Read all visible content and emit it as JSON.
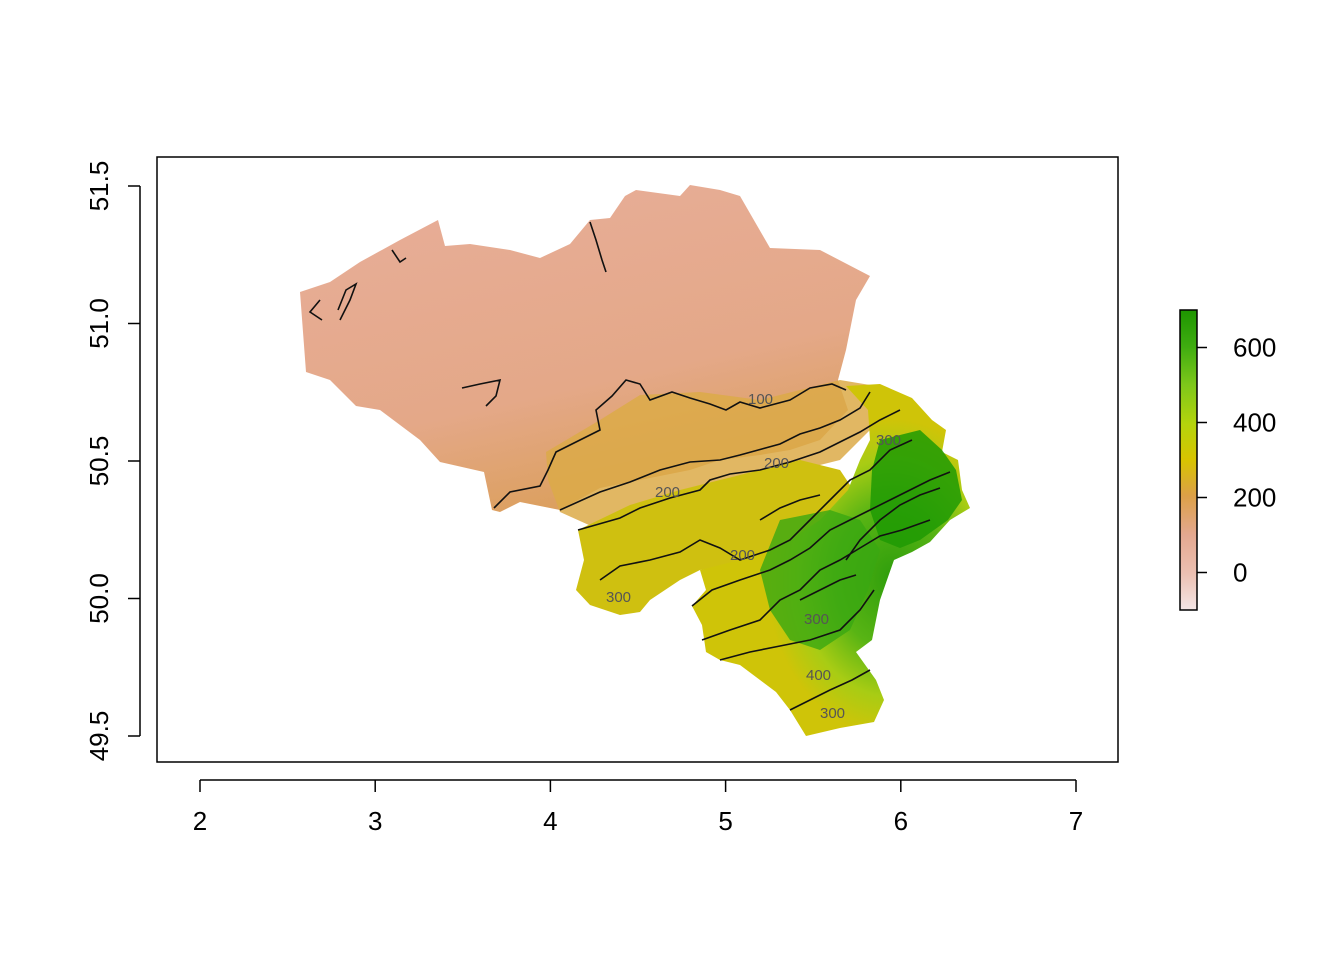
{
  "map": {
    "type": "raster-elevation",
    "xlim": [
      1.75,
      7.25
    ],
    "ylim": [
      49.4,
      51.6
    ],
    "x_ticks": [
      2,
      3,
      4,
      5,
      6,
      7
    ],
    "x_tick_labels": [
      "2",
      "3",
      "4",
      "5",
      "6",
      "7"
    ],
    "y_ticks": [
      49.5,
      50.0,
      50.5,
      51.0,
      51.5
    ],
    "y_tick_labels": [
      "49.5",
      "50.0",
      "50.5",
      "51.0",
      "51.5"
    ],
    "colorbar": {
      "range": [
        -100,
        700
      ],
      "ticks": [
        0,
        200,
        400,
        600
      ],
      "tick_labels": [
        "0",
        "200",
        "400",
        "600"
      ],
      "colors": [
        "#f2e4e4",
        "#e8b09c",
        "#e0a24a",
        "#d8c800",
        "#9fd21a",
        "#3aa80c",
        "#1e9600"
      ]
    },
    "contour_labels": [
      "100",
      "200",
      "200",
      "200",
      "300",
      "300",
      "300",
      "300",
      "400"
    ],
    "contour_levels": [
      100,
      200,
      300,
      400,
      500
    ]
  }
}
